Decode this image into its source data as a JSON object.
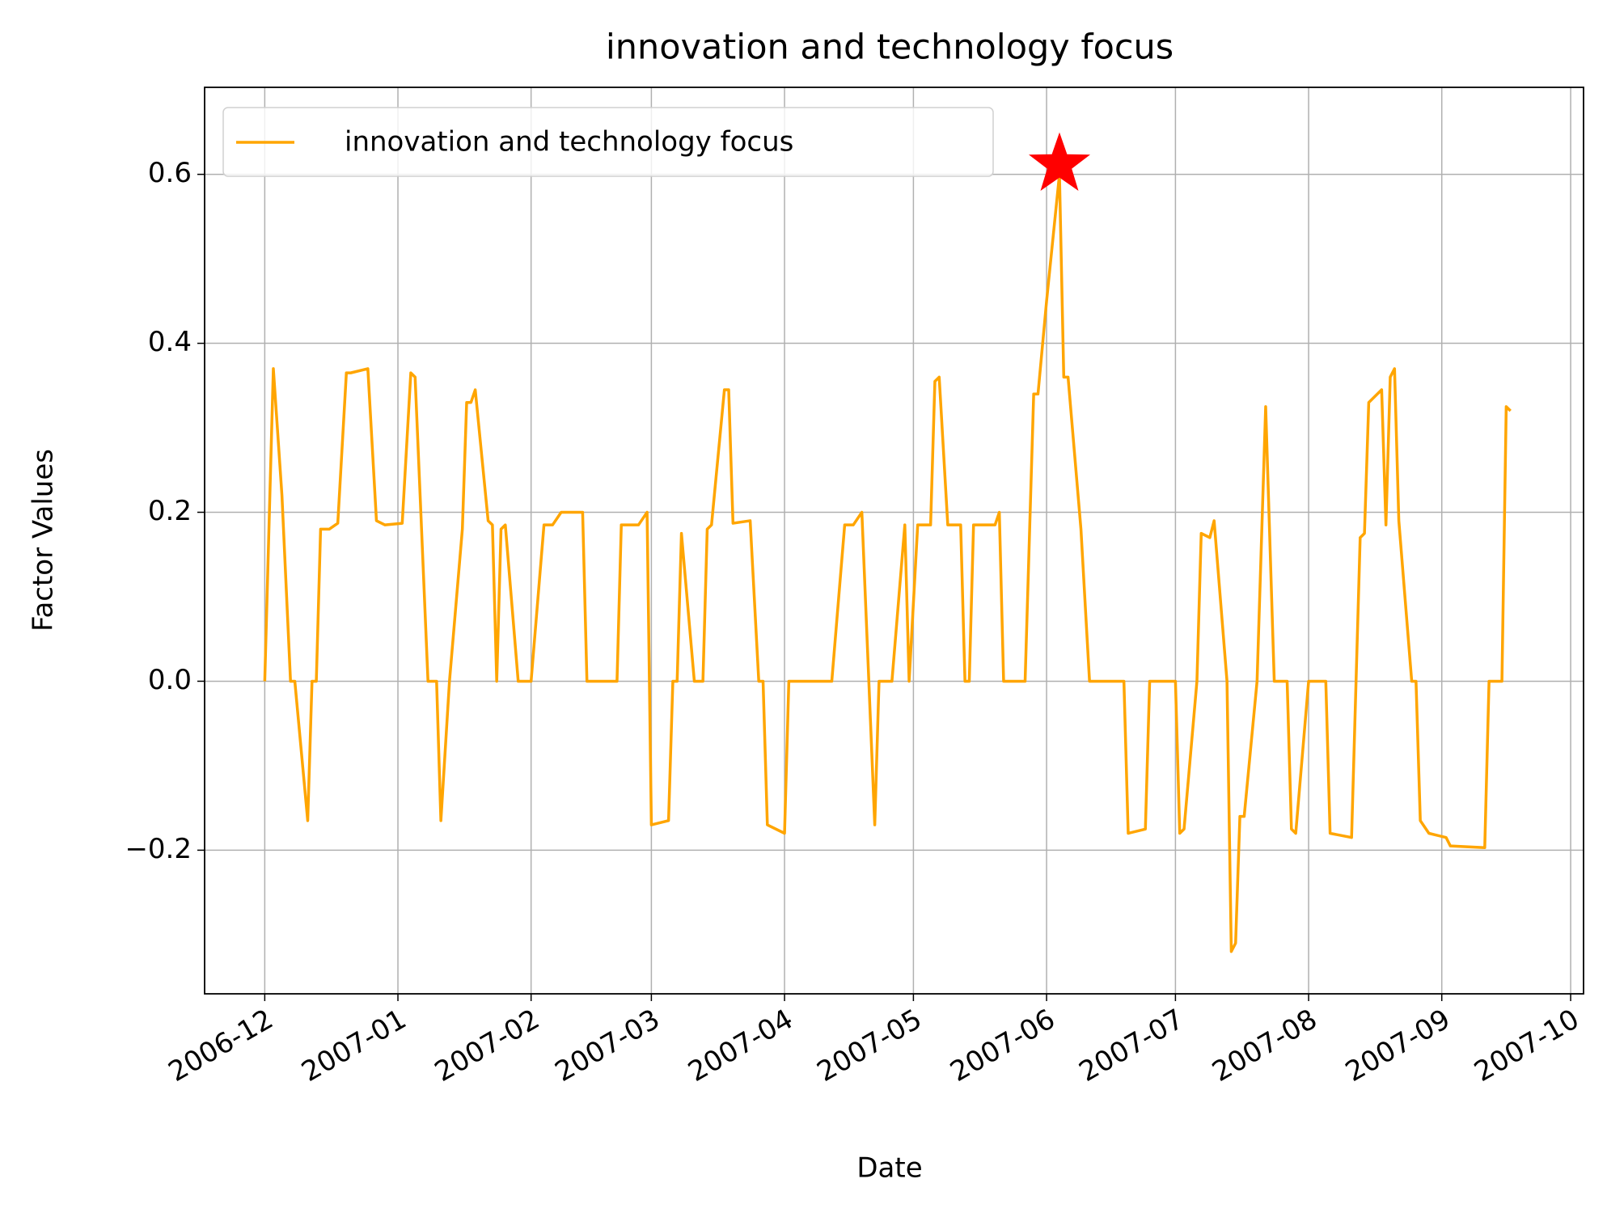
{
  "chart_data": {
    "type": "line",
    "title": "innovation and technology focus",
    "x_label": "Date",
    "y_label": "Factor Values",
    "x": [
      "2006-12-01",
      "2006-12-03",
      "2006-12-05",
      "2006-12-07",
      "2006-12-08",
      "2006-12-11",
      "2006-12-12",
      "2006-12-13",
      "2006-12-14",
      "2006-12-16",
      "2006-12-18",
      "2006-12-20",
      "2006-12-21",
      "2006-12-25",
      "2006-12-27",
      "2006-12-29",
      "2007-01-02",
      "2007-01-04",
      "2007-01-05",
      "2007-01-08",
      "2007-01-10",
      "2007-01-11",
      "2007-01-13",
      "2007-01-16",
      "2007-01-17",
      "2007-01-18",
      "2007-01-19",
      "2007-01-22",
      "2007-01-23",
      "2007-01-24",
      "2007-01-25",
      "2007-01-26",
      "2007-01-29",
      "2007-02-01",
      "2007-02-04",
      "2007-02-06",
      "2007-02-08",
      "2007-02-13",
      "2007-02-14",
      "2007-02-21",
      "2007-02-22",
      "2007-02-26",
      "2007-02-28",
      "2007-03-01",
      "2007-03-05",
      "2007-03-06",
      "2007-03-07",
      "2007-03-08",
      "2007-03-11",
      "2007-03-13",
      "2007-03-14",
      "2007-03-15",
      "2007-03-18",
      "2007-03-19",
      "2007-03-20",
      "2007-03-24",
      "2007-03-26",
      "2007-03-27",
      "2007-03-28",
      "2007-04-01",
      "2007-04-02",
      "2007-04-12",
      "2007-04-15",
      "2007-04-17",
      "2007-04-19",
      "2007-04-22",
      "2007-04-23",
      "2007-04-26",
      "2007-04-29",
      "2007-04-30",
      "2007-05-02",
      "2007-05-05",
      "2007-05-06",
      "2007-05-07",
      "2007-05-09",
      "2007-05-12",
      "2007-05-13",
      "2007-05-14",
      "2007-05-15",
      "2007-05-20",
      "2007-05-21",
      "2007-05-22",
      "2007-05-27",
      "2007-05-29",
      "2007-05-30",
      "2007-06-01",
      "2007-06-04",
      "2007-06-05",
      "2007-06-06",
      "2007-06-09",
      "2007-06-11",
      "2007-06-19",
      "2007-06-20",
      "2007-06-24",
      "2007-06-25",
      "2007-07-01",
      "2007-07-02",
      "2007-07-03",
      "2007-07-06",
      "2007-07-07",
      "2007-07-09",
      "2007-07-10",
      "2007-07-13",
      "2007-07-14",
      "2007-07-15",
      "2007-07-16",
      "2007-07-17",
      "2007-07-20",
      "2007-07-22",
      "2007-07-24",
      "2007-07-27",
      "2007-07-28",
      "2007-07-29",
      "2007-08-01",
      "2007-08-05",
      "2007-08-06",
      "2007-08-11",
      "2007-08-13",
      "2007-08-14",
      "2007-08-15",
      "2007-08-18",
      "2007-08-19",
      "2007-08-20",
      "2007-08-21",
      "2007-08-22",
      "2007-08-25",
      "2007-08-26",
      "2007-08-27",
      "2007-08-29",
      "2007-09-02",
      "2007-09-03",
      "2007-09-11",
      "2007-09-12",
      "2007-09-15",
      "2007-09-16",
      "2007-09-17"
    ],
    "series": [
      {
        "name": "innovation and technology focus",
        "color": "#ffa500",
        "values": [
          0,
          0.37,
          0.22,
          0,
          0,
          -0.165,
          0,
          0,
          0.18,
          0.18,
          0.187,
          0.365,
          0.365,
          0.37,
          0.19,
          0.185,
          0.187,
          0.365,
          0.36,
          0,
          0,
          -0.165,
          0,
          0.18,
          0.33,
          0.33,
          0.345,
          0.19,
          0.185,
          0,
          0.18,
          0.185,
          0,
          0,
          0.185,
          0.185,
          0.2,
          0.2,
          0,
          0,
          0.185,
          0.185,
          0.2,
          -0.17,
          -0.165,
          0,
          0,
          0.175,
          0,
          0,
          0.18,
          0.185,
          0.345,
          0.345,
          0.187,
          0.19,
          0,
          0,
          -0.17,
          -0.18,
          0,
          0,
          0.185,
          0.185,
          0.2,
          -0.17,
          0,
          0,
          0.185,
          0,
          0.185,
          0.185,
          0.355,
          0.36,
          0.185,
          0.185,
          0,
          0,
          0.185,
          0.185,
          0.2,
          0,
          0,
          0.34,
          0.34,
          0.45,
          0.6,
          0.36,
          0.36,
          0.18,
          0,
          0,
          -0.18,
          -0.175,
          0,
          0,
          -0.18,
          -0.175,
          0,
          0.175,
          0.17,
          0.19,
          0,
          -0.32,
          -0.31,
          -0.16,
          -0.16,
          0,
          0.325,
          0,
          0,
          -0.175,
          -0.18,
          0,
          0,
          -0.18,
          -0.185,
          0.17,
          0.175,
          0.33,
          0.345,
          0.185,
          0.36,
          0.37,
          0.19,
          0,
          0,
          -0.165,
          -0.18,
          -0.185,
          -0.195,
          -0.197,
          0,
          0,
          0.325,
          0.32
        ]
      }
    ],
    "xlim": [
      "2006-11-17",
      "2007-10-04"
    ],
    "xticks": [
      "2006-12",
      "2007-01",
      "2007-02",
      "2007-03",
      "2007-04",
      "2007-05",
      "2007-06",
      "2007-07",
      "2007-08",
      "2007-09",
      "2007-10"
    ],
    "ylim": [
      -0.37,
      0.703
    ],
    "yticks": [
      {
        "value": -0.2,
        "label": "−0.2"
      },
      {
        "value": 0,
        "label": "0.0"
      },
      {
        "value": 0.2,
        "label": "0.2"
      },
      {
        "value": 0.4,
        "label": "0.4"
      },
      {
        "value": 0.6,
        "label": "0.6"
      }
    ],
    "grid": true,
    "legend": "upper left"
  }
}
